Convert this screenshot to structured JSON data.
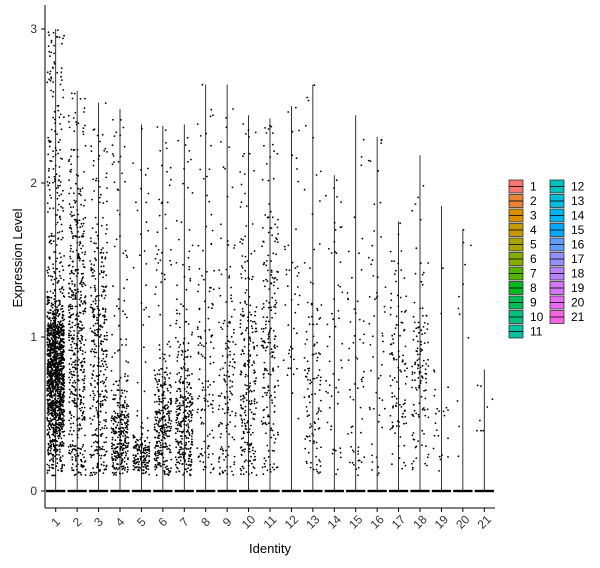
{
  "chart_data": {
    "type": "scatter",
    "subtype": "violin-jitter",
    "xlabel": "Identity",
    "ylabel": "Expression Level",
    "categories": [
      "1",
      "2",
      "3",
      "4",
      "5",
      "6",
      "7",
      "8",
      "9",
      "10",
      "11",
      "12",
      "13",
      "14",
      "15",
      "16",
      "17",
      "18",
      "19",
      "20",
      "21"
    ],
    "yticks": [
      "0",
      "1",
      "2",
      "3"
    ],
    "ylim": [
      -0.13,
      3.08
    ],
    "grid": false,
    "legend_position": "right",
    "legend_columns": 2,
    "series": [
      {
        "name": "1",
        "color": "#F8766D",
        "max": 3.0,
        "points": 1500,
        "dense_mean": 0.75,
        "dense_sd": 0.28
      },
      {
        "name": "2",
        "color": "#EB8335",
        "max": 2.6,
        "points": 520,
        "dense_mean": 1.0,
        "dense_sd": 0.55
      },
      {
        "name": "3",
        "color": "#DA8F00",
        "max": 2.52,
        "points": 380,
        "dense_mean": 0.9,
        "dense_sd": 0.55
      },
      {
        "name": "4",
        "color": "#C49A00",
        "max": 2.48,
        "points": 330,
        "dense_mean": 0.35,
        "dense_sd": 0.18
      },
      {
        "name": "5",
        "color": "#A9A400",
        "max": 2.38,
        "points": 180,
        "dense_mean": 0.22,
        "dense_sd": 0.08
      },
      {
        "name": "6",
        "color": "#86AC00",
        "max": 2.37,
        "points": 320,
        "dense_mean": 0.42,
        "dense_sd": 0.22
      },
      {
        "name": "7",
        "color": "#53B400",
        "max": 2.38,
        "points": 330,
        "dense_mean": 0.45,
        "dense_sd": 0.25
      },
      {
        "name": "8",
        "color": "#00B81F",
        "max": 2.64,
        "points": 130,
        "dense_mean": 0.8,
        "dense_sd": 0.6
      },
      {
        "name": "9",
        "color": "#00BC56",
        "max": 2.64,
        "points": 150,
        "dense_mean": 0.6,
        "dense_sd": 0.45
      },
      {
        "name": "10",
        "color": "#00BF7D",
        "max": 2.44,
        "points": 250,
        "dense_mean": 0.75,
        "dense_sd": 0.45
      },
      {
        "name": "11",
        "color": "#00C0A0",
        "max": 2.42,
        "points": 210,
        "dense_mean": 0.95,
        "dense_sd": 0.5
      },
      {
        "name": "12",
        "color": "#00BFC0",
        "max": 2.5,
        "points": 45,
        "dense_mean": 1.5,
        "dense_sd": 0.6
      },
      {
        "name": "13",
        "color": "#00BCDB",
        "max": 2.64,
        "points": 120,
        "dense_mean": 0.65,
        "dense_sd": 0.3
      },
      {
        "name": "14",
        "color": "#00B4EF",
        "max": 2.05,
        "points": 55,
        "dense_mean": 0.9,
        "dense_sd": 0.55
      },
      {
        "name": "15",
        "color": "#00A9FF",
        "max": 2.44,
        "points": 60,
        "dense_mean": 0.9,
        "dense_sd": 0.6
      },
      {
        "name": "16",
        "color": "#619CFF",
        "max": 2.3,
        "points": 55,
        "dense_mean": 1.0,
        "dense_sd": 0.6
      },
      {
        "name": "17",
        "color": "#9590FF",
        "max": 1.75,
        "points": 110,
        "dense_mean": 0.75,
        "dense_sd": 0.35
      },
      {
        "name": "18",
        "color": "#B983FF",
        "max": 2.18,
        "points": 130,
        "dense_mean": 0.75,
        "dense_sd": 0.35
      },
      {
        "name": "19",
        "color": "#D377FF",
        "max": 1.85,
        "points": 25,
        "dense_mean": 0.4,
        "dense_sd": 0.2
      },
      {
        "name": "20",
        "color": "#E76BF3",
        "max": 1.7,
        "points": 12,
        "dense_mean": 1.2,
        "dense_sd": 0.5
      },
      {
        "name": "21",
        "color": "#F564E3",
        "max": 0.79,
        "points": 8,
        "dense_mean": 0.5,
        "dense_sd": 0.2
      }
    ]
  }
}
